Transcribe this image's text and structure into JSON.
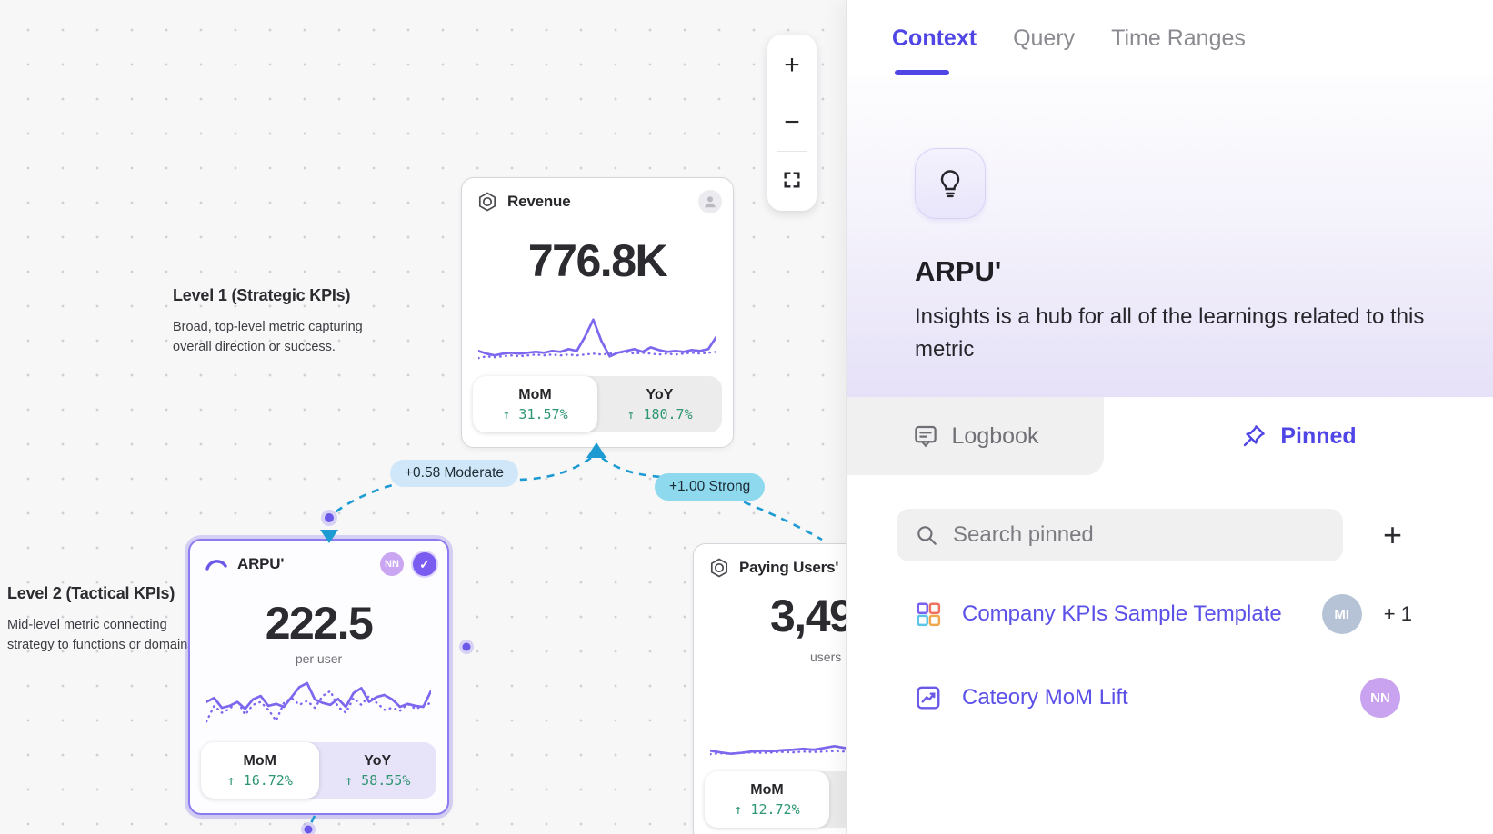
{
  "canvas": {
    "zoom_controls": {
      "zoom_in": "+",
      "zoom_out": "−"
    },
    "levels": [
      {
        "title": "Level 1 (Strategic KPIs)",
        "description": "Broad, top-level metric capturing overall direction or success."
      },
      {
        "title": "Level 2 (Tactical KPIs)",
        "description": "Mid-level metric connecting strategy to functions or domains."
      }
    ],
    "cards": [
      {
        "title": "Revenue",
        "value": "776.8K",
        "mom_label": "MoM",
        "mom_change": "↑ 31.57%",
        "yoy_label": "YoY",
        "yoy_change": "↑ 180.7%",
        "sparkline": {
          "solid": [
            0.3,
            0.24,
            0.2,
            0.24,
            0.26,
            0.24,
            0.26,
            0.28,
            0.26,
            0.3,
            0.28,
            0.34,
            0.3,
            0.62,
            1.0,
            0.52,
            0.18,
            0.26,
            0.3,
            0.34,
            0.28,
            0.38,
            0.32,
            0.28,
            0.3,
            0.28,
            0.32,
            0.3,
            0.34,
            0.62
          ],
          "dotted": [
            0.14,
            0.18,
            0.16,
            0.18,
            0.2,
            0.18,
            0.2,
            0.22,
            0.2,
            0.22,
            0.2,
            0.22,
            0.2,
            0.22,
            0.24,
            0.22,
            0.24,
            0.26,
            0.28,
            0.24,
            0.26,
            0.24,
            0.22,
            0.24,
            0.22,
            0.24,
            0.26,
            0.24,
            0.26,
            0.28
          ]
        }
      },
      {
        "title": "ARPU'",
        "value": "222.5",
        "unit": "per user",
        "avatar": "NN",
        "mom_label": "MoM",
        "mom_change": "↑ 16.72%",
        "yoy_label": "YoY",
        "yoy_change": "↑ 58.55%",
        "sparkline": {
          "solid": [
            0.5,
            0.58,
            0.38,
            0.42,
            0.5,
            0.36,
            0.55,
            0.62,
            0.42,
            0.46,
            0.4,
            0.6,
            0.8,
            0.88,
            0.55,
            0.48,
            0.44,
            0.56,
            0.4,
            0.68,
            0.78,
            0.5,
            0.6,
            0.64,
            0.55,
            0.4,
            0.46,
            0.42,
            0.4,
            0.72
          ],
          "dotted": [
            0.1,
            0.42,
            0.28,
            0.36,
            0.52,
            0.24,
            0.44,
            0.5,
            0.34,
            0.12,
            0.48,
            0.58,
            0.44,
            0.52,
            0.38,
            0.62,
            0.72,
            0.4,
            0.28,
            0.58,
            0.44,
            0.62,
            0.48,
            0.34,
            0.38,
            0.32,
            0.46,
            0.36,
            0.42,
            0.48
          ]
        }
      },
      {
        "title": "Paying Users'",
        "value": "3,49",
        "unit": "users",
        "mom_label": "MoM",
        "mom_change": "↑ 12.72%",
        "sparkline": {
          "solid": [
            0.2,
            0.16,
            0.13,
            0.15,
            0.18,
            0.2,
            0.19,
            0.21,
            0.22,
            0.24,
            0.22,
            0.26,
            0.3,
            0.26,
            0.24,
            0.28,
            0.98,
            0.5,
            0.22,
            0.2,
            0.22,
            0.24,
            0.23,
            0.25
          ],
          "dotted": [
            0.12,
            0.14,
            0.13,
            0.15,
            0.16,
            0.15,
            0.16,
            0.17,
            0.16,
            0.18,
            0.17,
            0.18,
            0.19,
            0.18,
            0.19,
            0.2,
            0.19,
            0.2,
            0.19,
            0.2,
            0.21,
            0.2,
            0.21,
            0.22
          ]
        }
      }
    ],
    "edges": [
      {
        "label": "+0.58 Moderate"
      },
      {
        "label": "+1.00 Strong"
      }
    ]
  },
  "panel": {
    "tabs": [
      {
        "label": "Context",
        "active": true
      },
      {
        "label": "Query"
      },
      {
        "label": "Time Ranges"
      }
    ],
    "metric": {
      "name": "ARPU'",
      "description": "Insights is a hub for all of the learnings related to this metric"
    },
    "subtabs": [
      {
        "label": "Logbook"
      },
      {
        "label": "Pinned",
        "active": true
      }
    ],
    "search": {
      "placeholder": "Search pinned",
      "add_label": "+"
    },
    "pinned_items": [
      {
        "label": "Company KPIs Sample Template",
        "avatar": "MI",
        "extra": "+ 1"
      },
      {
        "label": "Cateory MoM Lift",
        "avatar": "NN"
      }
    ]
  },
  "colors": {
    "accent": "#4f46e5",
    "sparkline": "#7b68ee",
    "positive": "#2e9673",
    "edge": "#1d9ad2",
    "selection": "#8b7bf0"
  }
}
